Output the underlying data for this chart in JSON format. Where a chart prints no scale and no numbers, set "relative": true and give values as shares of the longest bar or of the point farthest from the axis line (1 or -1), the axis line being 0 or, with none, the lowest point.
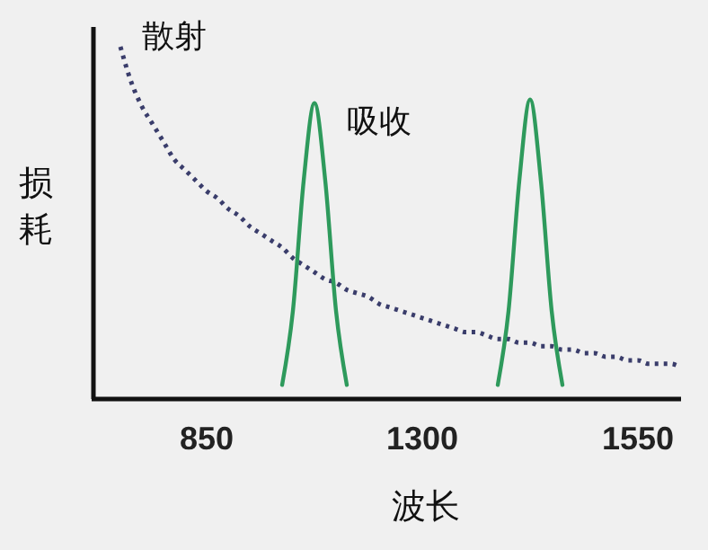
{
  "chart_data": {
    "type": "line",
    "relative": true,
    "xlabel": "波长",
    "ylabel": "损耗",
    "categories": [
      null,
      null,
      null,
      null,
      null,
      null,
      null,
      null,
      null,
      null,
      "850",
      null,
      null,
      null,
      null,
      null,
      null,
      null,
      null,
      null,
      null,
      null,
      null,
      null,
      null,
      null,
      null,
      null,
      null,
      null,
      "1300",
      null,
      null,
      null,
      null,
      null,
      null,
      null,
      null,
      null,
      null,
      null,
      null,
      null,
      null,
      null,
      null,
      null,
      null,
      null,
      "1550",
      null,
      null,
      null,
      null
    ],
    "series": [
      {
        "name": "散射",
        "color": "#3a3d6b",
        "line_style": "dotted",
        "values": [
          null,
          null,
          1,
          0.9,
          0.83,
          0.78,
          0.73,
          0.68,
          0.65,
          0.62,
          0.59,
          0.57,
          0.54,
          0.52,
          0.49,
          0.47,
          0.45,
          0.43,
          0.4,
          0.38,
          0.36,
          0.34,
          0.33,
          0.31,
          0.3,
          0.29,
          0.27,
          0.26,
          0.25,
          0.24,
          0.23,
          0.22,
          0.21,
          0.2,
          0.19,
          0.19,
          0.18,
          0.17,
          0.17,
          0.16,
          0.16,
          0.15,
          0.15,
          0.14,
          0.14,
          0.13,
          0.13,
          0.12,
          0.12,
          0.11,
          0.11,
          0.1,
          0.1,
          0.1,
          0.09
        ]
      },
      {
        "name": "吸收",
        "color": "#2e9a5c",
        "line_style": "solid",
        "values": [
          null,
          null,
          null,
          null,
          null,
          null,
          null,
          null,
          null,
          null,
          null,
          null,
          null,
          null,
          null,
          null,
          null,
          0.04,
          0.25,
          0.62,
          0.84,
          0.62,
          0.25,
          0.04,
          null,
          null,
          null,
          null,
          null,
          null,
          null,
          null,
          null,
          null,
          null,
          null,
          null,
          0.04,
          0.25,
          0.62,
          0.85,
          0.62,
          0.25,
          0.04,
          null,
          null,
          null,
          null,
          null,
          null,
          null,
          null,
          null,
          null,
          null
        ]
      }
    ]
  }
}
